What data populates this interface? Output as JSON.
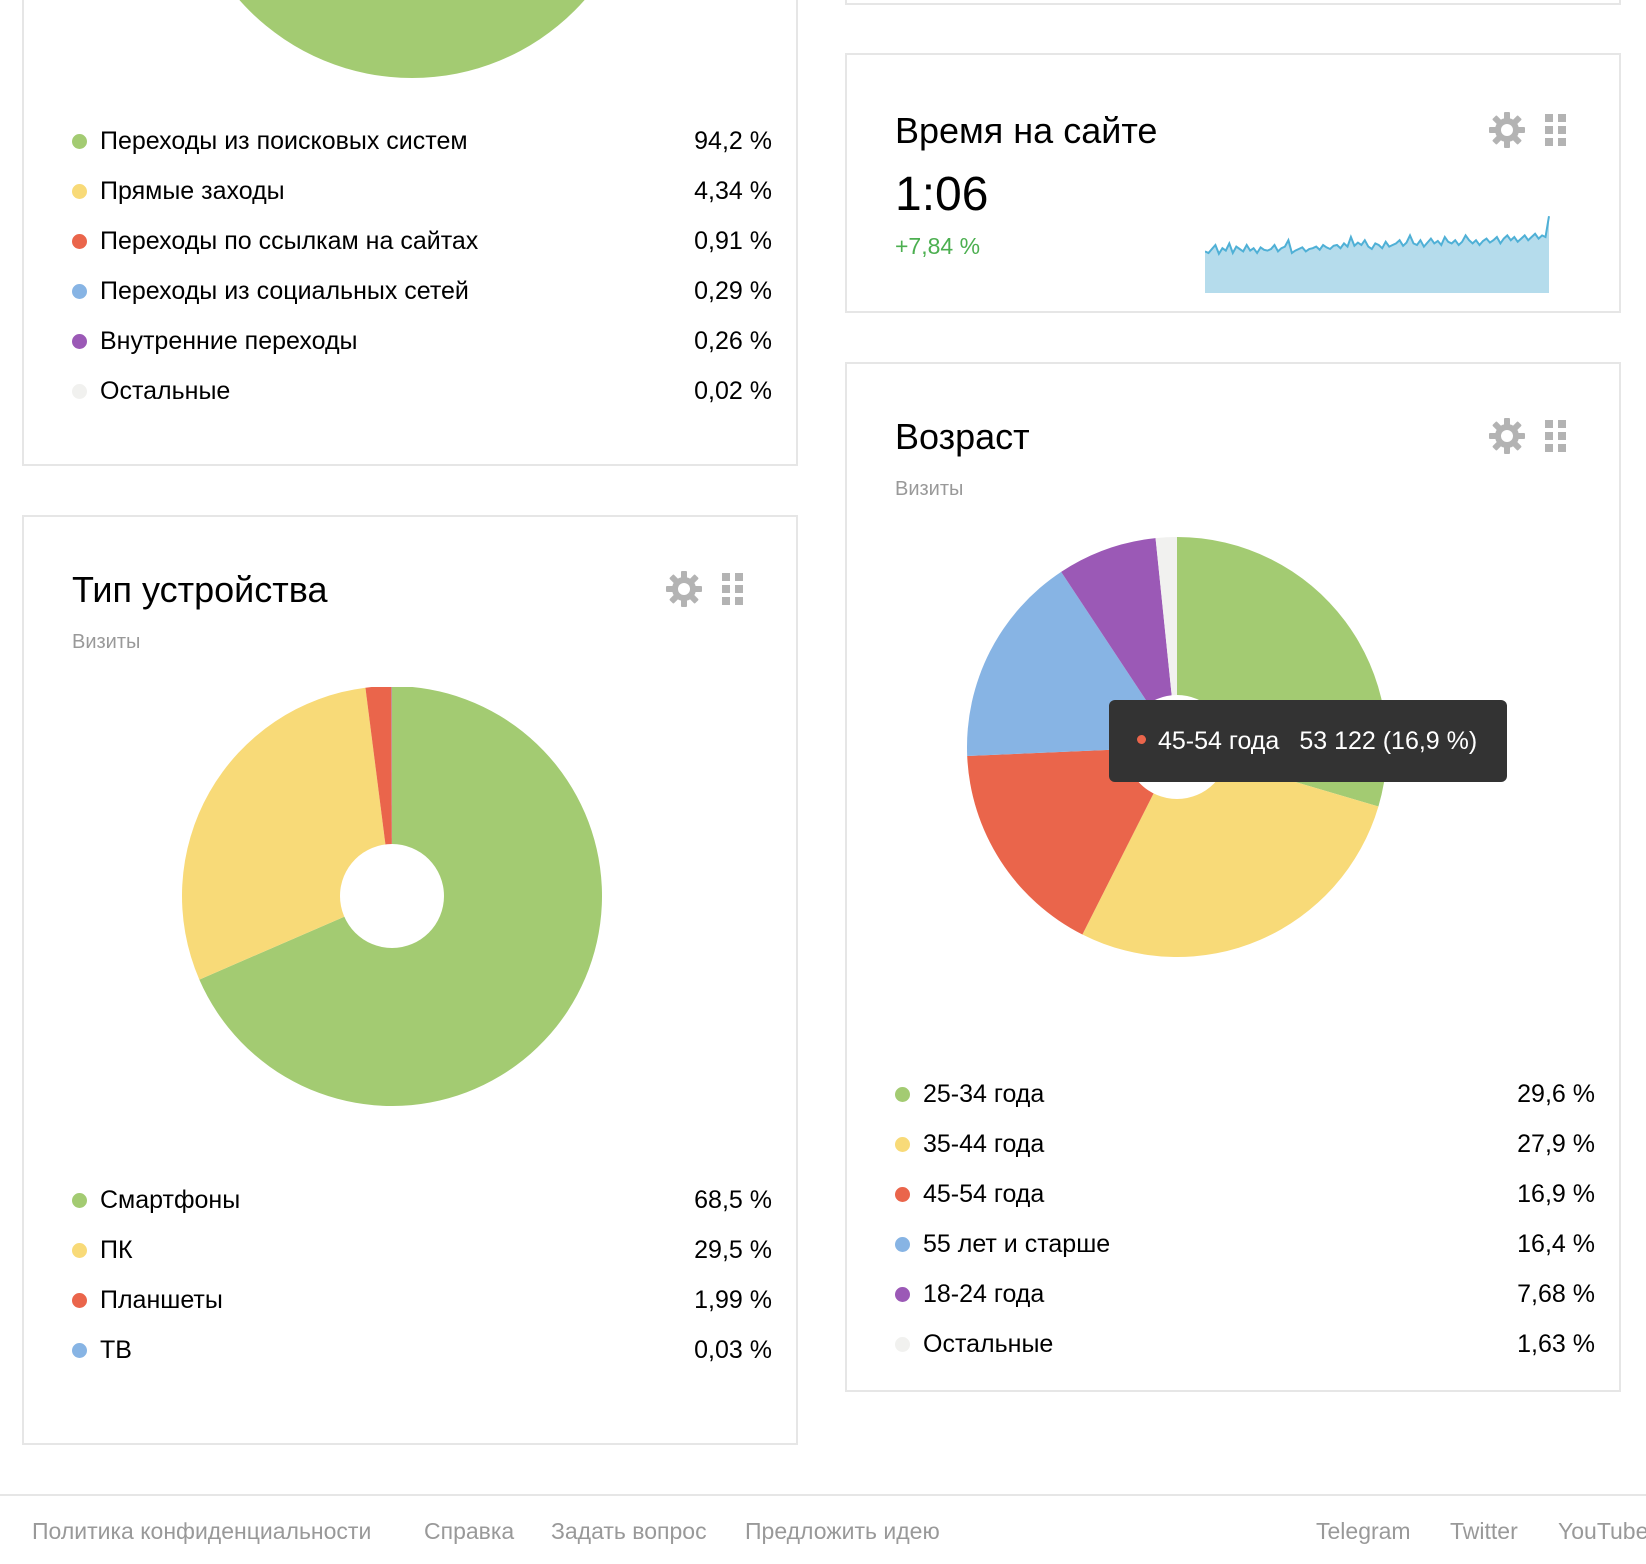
{
  "colors": {
    "green": "#a3cb72",
    "yellow": "#f8da78",
    "red": "#ea654b",
    "blue": "#87b4e4",
    "purple": "#9b59b6",
    "light": "#f1f1ef",
    "positive": "#4caf50",
    "spark_fill": "#b5dcec",
    "spark_line": "#4fb0d6",
    "icon_gray": "#b3b3b3"
  },
  "traffic_sources": {
    "items": [
      {
        "label": "Переходы из поисковых систем",
        "value": "94,2 %",
        "color": "#a3cb72"
      },
      {
        "label": "Прямые заходы",
        "value": "4,34 %",
        "color": "#f8da78"
      },
      {
        "label": "Переходы по ссылкам на сайтах",
        "value": "0,91 %",
        "color": "#ea654b"
      },
      {
        "label": "Переходы из социальных сетей",
        "value": "0,29 %",
        "color": "#87b4e4"
      },
      {
        "label": "Внутренние переходы",
        "value": "0,26 %",
        "color": "#9b59b6"
      },
      {
        "label": "Остальные",
        "value": "0,02 %",
        "color": "#f1f1ef"
      }
    ]
  },
  "time_on_site": {
    "title": "Время на сайте",
    "value": "1:06",
    "change": "+7,84 %",
    "icons": [
      "gear-icon",
      "drag-handle-icon"
    ]
  },
  "device": {
    "title": "Тип устройства",
    "subtitle": "Визиты",
    "items": [
      {
        "label": "Смартфоны",
        "value": "68,5 %",
        "color": "#a3cb72"
      },
      {
        "label": "ПК",
        "value": "29,5 %",
        "color": "#f8da78"
      },
      {
        "label": "Планшеты",
        "value": "1,99 %",
        "color": "#ea654b"
      },
      {
        "label": "ТВ",
        "value": "0,03 %",
        "color": "#87b4e4"
      }
    ]
  },
  "age": {
    "title": "Возраст",
    "subtitle": "Визиты",
    "items": [
      {
        "label": "25-34 года",
        "value": "29,6 %",
        "color": "#a3cb72"
      },
      {
        "label": "35-44 года",
        "value": "27,9 %",
        "color": "#f8da78"
      },
      {
        "label": "45-54 года",
        "value": "16,9 %",
        "color": "#ea654b"
      },
      {
        "label": "55 лет и старше",
        "value": "16,4 %",
        "color": "#87b4e4"
      },
      {
        "label": "18-24 года",
        "value": "7,68 %",
        "color": "#9b59b6"
      },
      {
        "label": "Остальные",
        "value": "1,63 %",
        "color": "#f1f1ef"
      }
    ],
    "tooltip": {
      "label": "45-54 года",
      "value": "53 122 (16,9 %)",
      "color": "#ea654b"
    }
  },
  "chart_data": [
    {
      "type": "pie",
      "categories": [
        "Переходы из поисковых систем",
        "Прямые заходы",
        "Переходы по ссылкам на сайтах",
        "Переходы из социальных сетей",
        "Внутренние переходы",
        "Остальные"
      ],
      "values": [
        94.2,
        4.34,
        0.91,
        0.29,
        0.26,
        0.02
      ]
    },
    {
      "type": "pie",
      "title": "Тип устройства",
      "subtitle": "Визиты",
      "categories": [
        "Смартфоны",
        "ПК",
        "Планшеты",
        "ТВ"
      ],
      "values": [
        68.5,
        29.5,
        1.99,
        0.03
      ]
    },
    {
      "type": "pie",
      "title": "Возраст",
      "subtitle": "Визиты",
      "categories": [
        "25-34 года",
        "35-44 года",
        "45-54 года",
        "55 лет и старше",
        "18-24 года",
        "Остальные"
      ],
      "values": [
        29.6,
        27.9,
        16.9,
        16.4,
        7.68,
        1.63
      ]
    },
    {
      "type": "area",
      "title": "Время на сайте",
      "values": [
        0.52,
        0.5,
        0.55,
        0.6,
        0.49,
        0.56,
        0.53,
        0.62,
        0.5,
        0.58,
        0.55,
        0.52,
        0.6,
        0.53,
        0.56,
        0.5,
        0.57,
        0.54,
        0.53,
        0.55,
        0.6,
        0.52,
        0.56,
        0.58,
        0.66,
        0.5,
        0.53,
        0.55,
        0.57,
        0.52,
        0.55,
        0.56,
        0.58,
        0.54,
        0.6,
        0.57,
        0.55,
        0.59,
        0.6,
        0.56,
        0.62,
        0.58,
        0.7,
        0.59,
        0.63,
        0.6,
        0.66,
        0.58,
        0.55,
        0.62,
        0.6,
        0.56,
        0.64,
        0.58,
        0.6,
        0.62,
        0.66,
        0.59,
        0.63,
        0.72,
        0.62,
        0.6,
        0.66,
        0.58,
        0.63,
        0.68,
        0.62,
        0.65,
        0.6,
        0.7,
        0.64,
        0.62,
        0.66,
        0.6,
        0.64,
        0.72,
        0.66,
        0.62,
        0.66,
        0.6,
        0.65,
        0.68,
        0.63,
        0.66,
        0.7,
        0.62,
        0.68,
        0.72,
        0.66,
        0.7,
        0.64,
        0.68,
        0.72,
        0.66,
        0.7,
        0.74,
        0.68,
        0.72,
        0.7,
        0.96
      ]
    }
  ],
  "footer": {
    "links_left": [
      "Политика конфиденциальности",
      "Справка",
      "Задать вопрос",
      "Предложить идею"
    ],
    "links_right": [
      "Telegram",
      "Twitter",
      "YouTube"
    ]
  }
}
